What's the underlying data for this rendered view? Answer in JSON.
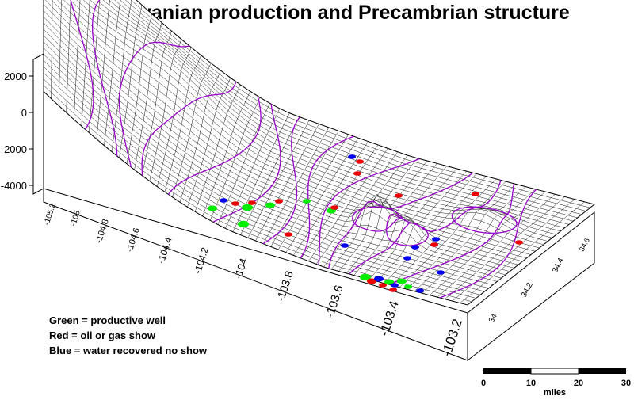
{
  "title": "Pennsylvanian production and Precambrian structure",
  "legend": [
    {
      "text": "Green = productive well",
      "color": "#00ee00"
    },
    {
      "text": "Red = oil or gas show",
      "color": "#ee0000"
    },
    {
      "text": "Blue = water recovered no show",
      "color": "#0000ee"
    }
  ],
  "colors": {
    "mesh": "#000000",
    "contour": "#9900cc",
    "background": "#ffffff"
  },
  "z_axis": {
    "ticks": [
      "2000",
      "0",
      "-2000",
      "-4000"
    ]
  },
  "x_axis": {
    "ticks": [
      "-105.2",
      "-105",
      "-104.8",
      "-104.6",
      "-104.4",
      "-104.2",
      "-104",
      "-103.8",
      "-103.6",
      "-103.4",
      "-103.2"
    ]
  },
  "y_axis": {
    "ticks": [
      "34",
      "34.2",
      "34.4",
      "34.6"
    ]
  },
  "scale_bar": {
    "ticks": [
      "0",
      "10",
      "20",
      "30"
    ],
    "unit": "miles"
  }
}
